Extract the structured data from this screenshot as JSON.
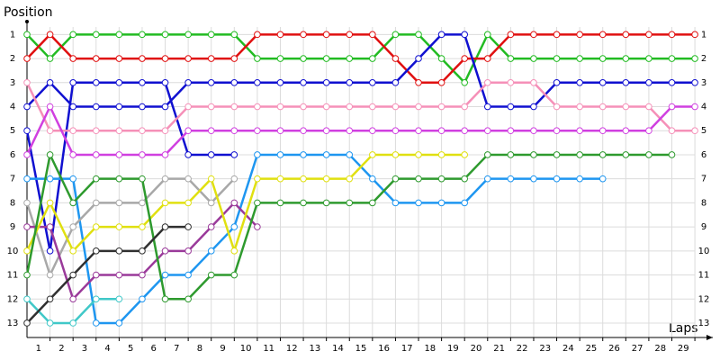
{
  "chart_data": {
    "type": "line",
    "y_label": "Position",
    "x_label": "Laps",
    "x": [
      0,
      1,
      2,
      3,
      4,
      5,
      6,
      7,
      8,
      9,
      10,
      11,
      12,
      13,
      14,
      15,
      16,
      17,
      18,
      19,
      20,
      21,
      22,
      23,
      24,
      25,
      26,
      27,
      28,
      29
    ],
    "xlim": [
      0,
      29.7
    ],
    "xticks": [
      1,
      2,
      3,
      4,
      5,
      6,
      7,
      8,
      9,
      10,
      11,
      12,
      13,
      14,
      15,
      16,
      17,
      18,
      19,
      20,
      21,
      22,
      23,
      24,
      25,
      26,
      27,
      28,
      29
    ],
    "ylim": [
      13.6,
      0.5
    ],
    "yticks": [
      1,
      2,
      3,
      4,
      5,
      6,
      7,
      8,
      9,
      10,
      11,
      12,
      13
    ],
    "grid": true,
    "series": [
      {
        "color": "#22bb22",
        "values": [
          1,
          2,
          1,
          1,
          1,
          1,
          1,
          1,
          1,
          1,
          2,
          2,
          2,
          2,
          2,
          2,
          1,
          1,
          2,
          3,
          1,
          2,
          2,
          2,
          2,
          2,
          2,
          2,
          2,
          2
        ]
      },
      {
        "color": "#e01010",
        "values": [
          2,
          1,
          2,
          2,
          2,
          2,
          2,
          2,
          2,
          2,
          1,
          1,
          1,
          1,
          1,
          1,
          2,
          3,
          3,
          2,
          2,
          1,
          1,
          1,
          1,
          1,
          1,
          1,
          1,
          1
        ]
      },
      {
        "color": "#1010d0",
        "values": [
          4,
          3,
          4,
          4,
          4,
          4,
          4,
          3,
          3,
          3,
          3,
          3,
          3,
          3,
          3,
          3,
          3,
          2,
          1,
          1,
          4,
          4,
          4,
          3,
          3,
          3,
          3,
          3,
          3,
          3
        ]
      },
      {
        "color": "#1010d0",
        "values": [
          5,
          10,
          3,
          3,
          3,
          3,
          3,
          6,
          6,
          6,
          null,
          null,
          null,
          null,
          null,
          null,
          null,
          null,
          null,
          null,
          null,
          null,
          null,
          null,
          null,
          null,
          null,
          null,
          null,
          null
        ]
      },
      {
        "color": "#f590b8",
        "values": [
          3,
          5,
          5,
          5,
          5,
          5,
          5,
          4,
          4,
          4,
          4,
          4,
          4,
          4,
          4,
          4,
          4,
          4,
          4,
          4,
          3,
          3,
          3,
          4,
          4,
          4,
          4,
          4,
          5,
          5
        ]
      },
      {
        "color": "#d040e0",
        "values": [
          6,
          4,
          6,
          6,
          6,
          6,
          6,
          5,
          5,
          5,
          5,
          5,
          5,
          5,
          5,
          5,
          5,
          5,
          5,
          5,
          5,
          5,
          5,
          5,
          5,
          5,
          5,
          5,
          4,
          4
        ]
      },
      {
        "color": "#1e96f0",
        "values": [
          7,
          7,
          7,
          13,
          13,
          12,
          11,
          11,
          10,
          9,
          6,
          6,
          6,
          6,
          6,
          7,
          8,
          8,
          8,
          8,
          7,
          7,
          7,
          7,
          7,
          7,
          null,
          null,
          null,
          null
        ]
      },
      {
        "color": "#a8a8a8",
        "values": [
          8,
          11,
          9,
          8,
          8,
          8,
          7,
          7,
          8,
          7,
          null,
          null,
          null,
          null,
          null,
          null,
          null,
          null,
          null,
          null,
          null,
          null,
          null,
          null,
          null,
          null,
          null,
          null,
          null,
          null
        ]
      },
      {
        "color": "#9a3a9a",
        "values": [
          9,
          9,
          12,
          11,
          11,
          11,
          10,
          10,
          9,
          8,
          9,
          null,
          null,
          null,
          null,
          null,
          null,
          null,
          null,
          null,
          null,
          null,
          null,
          null,
          null,
          null,
          null,
          null,
          null,
          null
        ]
      },
      {
        "color": "#e0e010",
        "values": [
          10,
          8,
          10,
          9,
          9,
          9,
          8,
          8,
          7,
          10,
          7,
          7,
          7,
          7,
          7,
          6,
          6,
          6,
          6,
          6,
          null,
          null,
          null,
          null,
          null,
          null,
          null,
          null,
          null,
          null
        ]
      },
      {
        "color": "#2e9a2e",
        "values": [
          11,
          6,
          8,
          7,
          7,
          7,
          12,
          12,
          11,
          11,
          8,
          8,
          8,
          8,
          8,
          8,
          7,
          7,
          7,
          7,
          6,
          6,
          6,
          6,
          6,
          6,
          6,
          6,
          6,
          null
        ]
      },
      {
        "color": "#40c8c8",
        "values": [
          12,
          13,
          13,
          12,
          12,
          null,
          null,
          null,
          null,
          null,
          null,
          null,
          null,
          null,
          null,
          null,
          null,
          null,
          null,
          null,
          null,
          null,
          null,
          null,
          null,
          null,
          null,
          null,
          null,
          null
        ]
      },
      {
        "color": "#303030",
        "values": [
          13,
          12,
          11,
          10,
          10,
          10,
          9,
          9,
          null,
          null,
          null,
          null,
          null,
          null,
          null,
          null,
          null,
          null,
          null,
          null,
          null,
          null,
          null,
          null,
          null,
          null,
          null,
          null,
          null,
          null
        ]
      }
    ]
  }
}
